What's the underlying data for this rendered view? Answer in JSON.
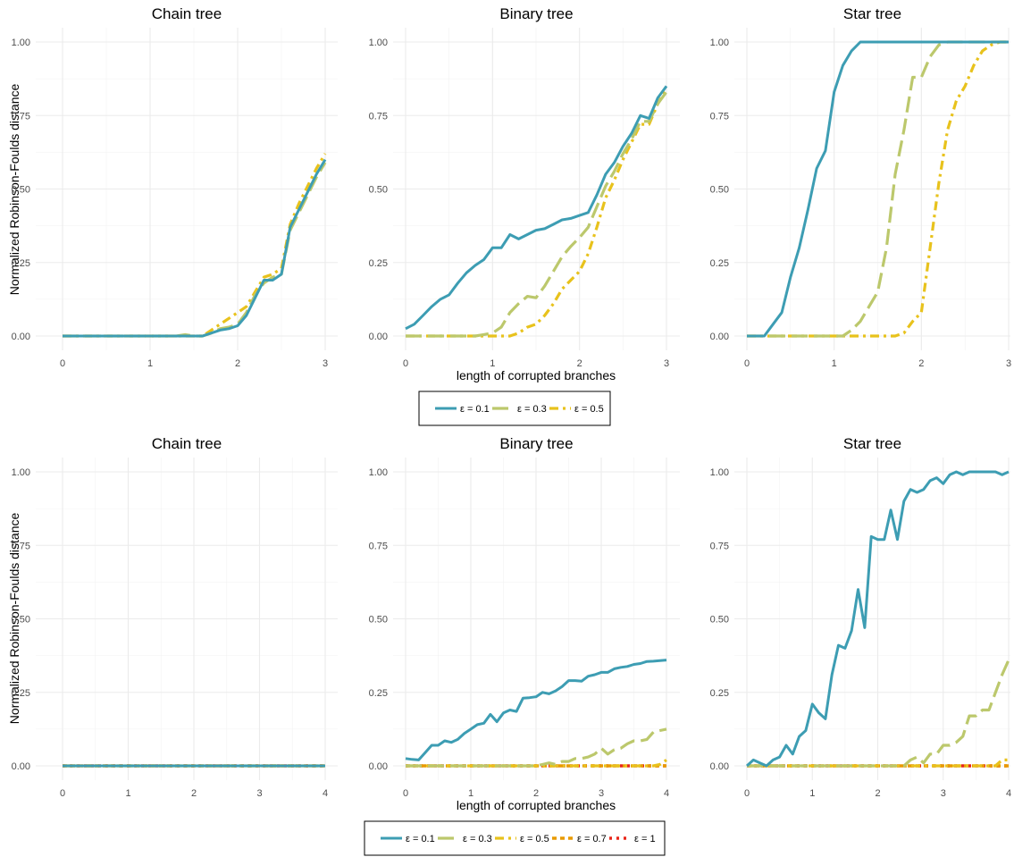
{
  "figure": {
    "ylabel": "Normalized Robinson-Foulds distance",
    "xlabel": "length of corrupted branches"
  },
  "colors": {
    "eps_0_1": "#3D9DB3",
    "eps_0_3": "#BCC86C",
    "eps_0_5": "#E8C21C",
    "eps_0_7": "#E89A00",
    "eps_1": "#E8261A"
  },
  "legends": [
    {
      "entries": [
        "ε = 0.1",
        "ε = 0.3",
        "ε = 0.5"
      ]
    },
    {
      "entries": [
        "ε = 0.1",
        "ε = 0.3",
        "ε = 0.5",
        "ε = 0.7",
        "ε = 1"
      ]
    }
  ],
  "chart_data": [
    {
      "type": "line",
      "title": "Chain tree",
      "xlim": [
        0,
        3
      ],
      "ylim": [
        0,
        1
      ],
      "xticks": [
        "0",
        "1",
        "2",
        "3"
      ],
      "yticks": [
        "0.00",
        "0.25",
        "0.50",
        "0.75",
        "1.00"
      ],
      "x": [
        0,
        0.1,
        0.2,
        0.3,
        0.4,
        0.5,
        0.6,
        0.7,
        0.8,
        0.9,
        1.0,
        1.1,
        1.2,
        1.3,
        1.4,
        1.5,
        1.6,
        1.7,
        1.8,
        1.9,
        2.0,
        2.1,
        2.2,
        2.3,
        2.4,
        2.5,
        2.6,
        2.7,
        2.8,
        2.9,
        3.0
      ],
      "series": [
        {
          "name": "ε = 0.1",
          "values": [
            0,
            0,
            0,
            0,
            0,
            0,
            0,
            0,
            0,
            0,
            0,
            0,
            0,
            0,
            0,
            0,
            0,
            0.01,
            0.02,
            0.025,
            0.035,
            0.07,
            0.13,
            0.19,
            0.19,
            0.21,
            0.37,
            0.43,
            0.49,
            0.55,
            0.6
          ]
        },
        {
          "name": "ε = 0.3",
          "values": [
            0,
            0,
            0,
            0,
            0,
            0,
            0,
            0,
            0,
            0,
            0,
            0,
            0,
            0,
            0.005,
            0,
            0,
            0.01,
            0.025,
            0.03,
            0.04,
            0.08,
            0.14,
            0.18,
            0.2,
            0.21,
            0.36,
            0.42,
            0.48,
            0.54,
            0.59
          ]
        },
        {
          "name": "ε = 0.5",
          "values": [
            0,
            0,
            0,
            0,
            0,
            0,
            0,
            0,
            0,
            0,
            0,
            0,
            0,
            0,
            0,
            0,
            0,
            0.02,
            0.04,
            0.06,
            0.08,
            0.1,
            0.15,
            0.2,
            0.21,
            0.23,
            0.38,
            0.45,
            0.51,
            0.57,
            0.62
          ]
        }
      ]
    },
    {
      "type": "line",
      "title": "Binary tree",
      "xlim": [
        0,
        3
      ],
      "ylim": [
        0,
        1
      ],
      "xticks": [
        "0",
        "1",
        "2",
        "3"
      ],
      "yticks": [
        "0.00",
        "0.25",
        "0.50",
        "0.75",
        "1.00"
      ],
      "x": [
        0,
        0.1,
        0.2,
        0.3,
        0.4,
        0.5,
        0.6,
        0.7,
        0.8,
        0.9,
        1.0,
        1.1,
        1.2,
        1.3,
        1.4,
        1.5,
        1.6,
        1.7,
        1.8,
        1.9,
        2.0,
        2.1,
        2.2,
        2.3,
        2.4,
        2.5,
        2.6,
        2.7,
        2.8,
        2.9,
        3.0
      ],
      "series": [
        {
          "name": "ε = 0.1",
          "values": [
            0.025,
            0.04,
            0.07,
            0.1,
            0.125,
            0.14,
            0.18,
            0.215,
            0.24,
            0.26,
            0.3,
            0.3,
            0.345,
            0.33,
            0.345,
            0.36,
            0.365,
            0.38,
            0.395,
            0.4,
            0.41,
            0.42,
            0.48,
            0.55,
            0.59,
            0.645,
            0.69,
            0.75,
            0.74,
            0.81,
            0.85
          ]
        },
        {
          "name": "ε = 0.3",
          "values": [
            0,
            0,
            0,
            0,
            0,
            0,
            0,
            0,
            0,
            0.005,
            0.01,
            0.03,
            0.08,
            0.11,
            0.135,
            0.13,
            0.17,
            0.22,
            0.27,
            0.305,
            0.335,
            0.37,
            0.44,
            0.51,
            0.56,
            0.62,
            0.67,
            0.73,
            0.73,
            0.79,
            0.83
          ]
        },
        {
          "name": "ε = 0.5",
          "values": [
            0,
            0,
            0,
            0,
            0,
            0,
            0,
            0,
            0,
            0,
            0,
            0,
            0,
            0.01,
            0.03,
            0.04,
            0.07,
            0.11,
            0.16,
            0.19,
            0.22,
            0.28,
            0.37,
            0.47,
            0.53,
            0.6,
            0.66,
            0.72,
            0.72,
            0.79,
            0.84
          ]
        }
      ]
    },
    {
      "type": "line",
      "title": "Star tree",
      "xlim": [
        0,
        3
      ],
      "ylim": [
        0,
        1
      ],
      "xticks": [
        "0",
        "1",
        "2",
        "3"
      ],
      "yticks": [
        "0.00",
        "0.25",
        "0.50",
        "0.75",
        "1.00"
      ],
      "x": [
        0,
        0.1,
        0.2,
        0.3,
        0.4,
        0.5,
        0.6,
        0.7,
        0.8,
        0.9,
        1.0,
        1.1,
        1.2,
        1.3,
        1.4,
        1.5,
        1.6,
        1.7,
        1.8,
        1.9,
        2.0,
        2.1,
        2.2,
        2.3,
        2.4,
        2.5,
        2.6,
        2.7,
        2.8,
        2.9,
        3.0
      ],
      "series": [
        {
          "name": "ε = 0.1",
          "values": [
            0,
            0,
            0,
            0.04,
            0.08,
            0.2,
            0.3,
            0.43,
            0.57,
            0.63,
            0.83,
            0.92,
            0.97,
            1,
            1,
            1,
            1,
            1,
            1,
            1,
            1,
            1,
            1,
            1,
            1,
            1,
            1,
            1,
            1,
            1,
            1
          ]
        },
        {
          "name": "ε = 0.3",
          "values": [
            0,
            0,
            0,
            0,
            0,
            0,
            0,
            0,
            0,
            0,
            0,
            0,
            0.02,
            0.05,
            0.1,
            0.15,
            0.3,
            0.55,
            0.7,
            0.88,
            0.88,
            0.95,
            0.99,
            1,
            1,
            1,
            1,
            1,
            1,
            1,
            1
          ]
        },
        {
          "name": "ε = 0.5",
          "values": [
            0,
            0,
            0,
            0,
            0,
            0,
            0,
            0,
            0,
            0,
            0,
            0,
            0,
            0,
            0,
            0,
            0,
            0,
            0.01,
            0.05,
            0.08,
            0.3,
            0.52,
            0.7,
            0.8,
            0.85,
            0.92,
            0.97,
            0.99,
            1,
            1
          ]
        }
      ]
    },
    {
      "type": "line",
      "title": "Chain tree",
      "xlim": [
        0,
        4
      ],
      "ylim": [
        0,
        1
      ],
      "xticks": [
        "0",
        "1",
        "2",
        "3",
        "4"
      ],
      "yticks": [
        "0.00",
        "0.25",
        "0.50",
        "0.75",
        "1.00"
      ],
      "x": [
        0,
        4
      ],
      "series": [
        {
          "name": "ε = 0.1",
          "values": [
            0,
            0
          ]
        },
        {
          "name": "ε = 0.3",
          "values": [
            0,
            0
          ]
        },
        {
          "name": "ε = 0.5",
          "values": [
            0,
            0
          ]
        },
        {
          "name": "ε = 0.7",
          "values": [
            0,
            0
          ]
        },
        {
          "name": "ε = 1",
          "values": [
            0,
            0
          ]
        }
      ]
    },
    {
      "type": "line",
      "title": "Binary tree",
      "xlim": [
        0,
        4
      ],
      "ylim": [
        0,
        1
      ],
      "xticks": [
        "0",
        "1",
        "2",
        "3",
        "4"
      ],
      "yticks": [
        "0.00",
        "0.25",
        "0.50",
        "0.75",
        "1.00"
      ],
      "x": [
        0,
        0.1,
        0.2,
        0.3,
        0.4,
        0.5,
        0.6,
        0.7,
        0.8,
        0.9,
        1.0,
        1.1,
        1.2,
        1.3,
        1.4,
        1.5,
        1.6,
        1.7,
        1.8,
        1.9,
        2.0,
        2.1,
        2.2,
        2.3,
        2.4,
        2.5,
        2.6,
        2.7,
        2.8,
        2.9,
        3.0,
        3.1,
        3.2,
        3.3,
        3.4,
        3.5,
        3.6,
        3.7,
        3.8,
        3.9,
        4.0
      ],
      "series": [
        {
          "name": "ε = 0.1",
          "values": [
            0.025,
            0.022,
            0.02,
            0.045,
            0.07,
            0.07,
            0.085,
            0.08,
            0.09,
            0.11,
            0.125,
            0.14,
            0.145,
            0.175,
            0.15,
            0.18,
            0.19,
            0.185,
            0.23,
            0.232,
            0.235,
            0.25,
            0.245,
            0.255,
            0.27,
            0.29,
            0.29,
            0.288,
            0.305,
            0.31,
            0.318,
            0.318,
            0.33,
            0.335,
            0.338,
            0.345,
            0.348,
            0.355,
            0.356,
            0.358,
            0.36
          ]
        },
        {
          "name": "ε = 0.3",
          "values": [
            0,
            0,
            0,
            0,
            0,
            0,
            0,
            0,
            0,
            0,
            0,
            0,
            0,
            0,
            0,
            0,
            0,
            0,
            0,
            0,
            0,
            0.005,
            0.01,
            0.005,
            0.015,
            0.015,
            0.025,
            0.025,
            0.03,
            0.04,
            0.06,
            0.04,
            0.055,
            0.06,
            0.075,
            0.085,
            0.085,
            0.09,
            0.115,
            0.12,
            0.125
          ]
        },
        {
          "name": "ε = 0.5",
          "values": [
            0,
            0,
            0,
            0,
            0,
            0,
            0,
            0,
            0,
            0,
            0,
            0,
            0,
            0,
            0,
            0,
            0,
            0,
            0,
            0,
            0,
            0,
            0,
            0,
            0,
            0,
            0,
            0,
            0,
            0,
            0,
            0,
            0,
            0,
            0,
            0,
            0,
            0,
            0,
            0.005,
            0.02
          ]
        },
        {
          "name": "ε = 0.7",
          "values": [
            0,
            0,
            0,
            0,
            0,
            0,
            0,
            0,
            0,
            0,
            0,
            0,
            0,
            0,
            0,
            0,
            0,
            0,
            0,
            0,
            0,
            0,
            0,
            0,
            0,
            0,
            0,
            0,
            0,
            0,
            0,
            0,
            0,
            0,
            0,
            0,
            0,
            0,
            0,
            0,
            0
          ]
        },
        {
          "name": "ε = 1",
          "values": [
            0,
            0,
            0,
            0,
            0,
            0,
            0,
            0,
            0,
            0,
            0,
            0,
            0,
            0,
            0,
            0,
            0,
            0,
            0,
            0,
            0,
            0,
            0,
            0,
            0,
            0,
            0,
            0,
            0,
            0,
            0,
            0,
            0,
            0,
            0,
            0,
            0,
            0,
            0,
            0,
            0
          ]
        }
      ]
    },
    {
      "type": "line",
      "title": "Star tree",
      "xlim": [
        0,
        4
      ],
      "ylim": [
        0,
        1
      ],
      "xticks": [
        "0",
        "1",
        "2",
        "3",
        "4"
      ],
      "yticks": [
        "0.00",
        "0.25",
        "0.50",
        "0.75",
        "1.00"
      ],
      "x": [
        0,
        0.1,
        0.2,
        0.3,
        0.4,
        0.5,
        0.6,
        0.7,
        0.8,
        0.9,
        1.0,
        1.1,
        1.2,
        1.3,
        1.4,
        1.5,
        1.6,
        1.7,
        1.8,
        1.9,
        2.0,
        2.1,
        2.2,
        2.3,
        2.4,
        2.5,
        2.6,
        2.7,
        2.8,
        2.9,
        3.0,
        3.1,
        3.2,
        3.3,
        3.4,
        3.5,
        3.6,
        3.7,
        3.8,
        3.9,
        4.0
      ],
      "series": [
        {
          "name": "ε = 0.1",
          "values": [
            0,
            0.02,
            0.01,
            0,
            0.02,
            0.03,
            0.07,
            0.04,
            0.1,
            0.12,
            0.21,
            0.18,
            0.16,
            0.31,
            0.41,
            0.4,
            0.46,
            0.6,
            0.47,
            0.78,
            0.77,
            0.77,
            0.87,
            0.77,
            0.9,
            0.94,
            0.93,
            0.94,
            0.97,
            0.98,
            0.96,
            0.99,
            1,
            0.99,
            1,
            1,
            1,
            1,
            1,
            0.99,
            1
          ]
        },
        {
          "name": "ε = 0.3",
          "values": [
            0,
            0,
            0,
            0,
            0,
            0,
            0,
            0,
            0,
            0,
            0,
            0,
            0,
            0,
            0,
            0,
            0,
            0,
            0,
            0,
            0,
            0,
            0,
            0,
            0,
            0.02,
            0.03,
            0.01,
            0.04,
            0.04,
            0.07,
            0.07,
            0.08,
            0.1,
            0.17,
            0.17,
            0.19,
            0.19,
            0.25,
            0.31,
            0.36
          ]
        },
        {
          "name": "ε = 0.5",
          "values": [
            0,
            0,
            0,
            0,
            0,
            0,
            0,
            0,
            0,
            0,
            0,
            0,
            0,
            0,
            0,
            0,
            0,
            0,
            0,
            0,
            0,
            0,
            0,
            0,
            0,
            0,
            0,
            0,
            0,
            0,
            0,
            0,
            0,
            0,
            0,
            0,
            0,
            0,
            0,
            0.02,
            0.02
          ]
        },
        {
          "name": "ε = 0.7",
          "values": [
            0,
            0,
            0,
            0,
            0,
            0,
            0,
            0,
            0,
            0,
            0,
            0,
            0,
            0,
            0,
            0,
            0,
            0,
            0,
            0,
            0,
            0,
            0,
            0,
            0,
            0,
            0,
            0,
            0,
            0,
            0,
            0,
            0,
            0,
            0,
            0,
            0,
            0,
            0,
            0,
            0
          ]
        },
        {
          "name": "ε = 1",
          "values": [
            0,
            0,
            0,
            0,
            0,
            0,
            0,
            0,
            0,
            0,
            0,
            0,
            0,
            0,
            0,
            0,
            0,
            0,
            0,
            0,
            0,
            0,
            0,
            0,
            0,
            0,
            0,
            0,
            0,
            0,
            0,
            0,
            0,
            0,
            0,
            0,
            0,
            0,
            0,
            0,
            0
          ]
        }
      ]
    }
  ]
}
